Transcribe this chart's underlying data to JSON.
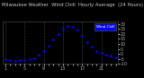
{
  "title": "Milwaukee Weather  Wind Chill  Hourly Average  (24 Hours)",
  "hours": [
    1,
    2,
    3,
    4,
    5,
    6,
    7,
    8,
    9,
    10,
    11,
    12,
    13,
    14,
    15,
    16,
    17,
    18,
    19,
    20,
    21,
    22,
    23,
    24
  ],
  "wind_chill": [
    -5,
    -6,
    -7,
    -6,
    -6,
    -5,
    -4,
    -1,
    3,
    8,
    14,
    20,
    25,
    28,
    27,
    24,
    18,
    12,
    7,
    3,
    1,
    -1,
    -2,
    -3
  ],
  "dot_color": "#0000ff",
  "bg_color": "#000000",
  "plot_bg": "#000000",
  "grid_color": "#555555",
  "title_color": "#cccccc",
  "legend_label": "Wind Chill",
  "legend_color": "#0000ff",
  "legend_text_color": "#ffffff",
  "ylim": [
    -10,
    32
  ],
  "yticks": [
    -10,
    -5,
    0,
    5,
    10,
    15,
    20,
    25,
    30
  ],
  "tick_color": "#aaaaaa",
  "spine_color": "#555555",
  "ylabel_fontsize": 3.5,
  "xlabel_fontsize": 3.5,
  "title_fontsize": 3.8,
  "x_gridlines": [
    1,
    5,
    9,
    13,
    17,
    21,
    25
  ],
  "xtick_labels_show": [
    1,
    5,
    9,
    13,
    17,
    21
  ]
}
